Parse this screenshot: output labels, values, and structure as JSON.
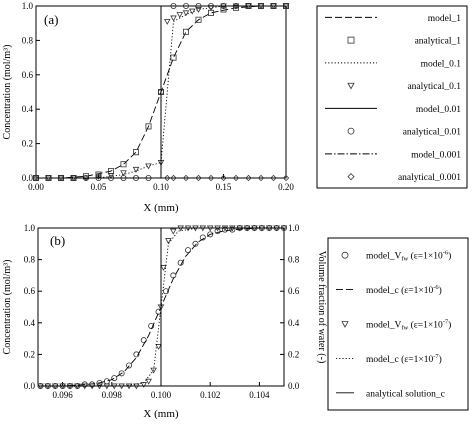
{
  "chart_data": [
    {
      "panel_label": "(a)",
      "type": "line",
      "xlabel": "X (mm)",
      "ylabel": "Concentration (mol/m³)",
      "xlim": [
        0.0,
        0.2
      ],
      "ylim": [
        0.0,
        1.0
      ],
      "xticks": [
        "0.00",
        "0.05",
        "0.10",
        "0.15",
        "0.20"
      ],
      "yticks": [
        "0.0",
        "0.2",
        "0.4",
        "0.6",
        "0.8",
        "1.0"
      ],
      "legend_position": "right",
      "series": [
        {
          "name": "model_1",
          "kind": "line",
          "style": "long-dash",
          "x": [
            0.0,
            0.02,
            0.04,
            0.06,
            0.07,
            0.08,
            0.09,
            0.1,
            0.11,
            0.12,
            0.13,
            0.14,
            0.16,
            0.18,
            0.2
          ],
          "y": [
            0.0,
            0.0,
            0.01,
            0.04,
            0.08,
            0.15,
            0.3,
            0.5,
            0.7,
            0.85,
            0.92,
            0.96,
            0.99,
            1.0,
            1.0
          ]
        },
        {
          "name": "analytical_1",
          "kind": "marker",
          "marker": "square",
          "x": [
            0.0,
            0.01,
            0.02,
            0.03,
            0.04,
            0.05,
            0.06,
            0.07,
            0.08,
            0.09,
            0.1,
            0.11,
            0.12,
            0.13,
            0.14,
            0.15,
            0.16,
            0.17,
            0.18,
            0.19,
            0.2
          ],
          "y": [
            0.0,
            0.0,
            0.0,
            0.0,
            0.01,
            0.02,
            0.04,
            0.08,
            0.15,
            0.3,
            0.5,
            0.7,
            0.85,
            0.92,
            0.96,
            0.98,
            0.99,
            1.0,
            1.0,
            1.0,
            1.0
          ]
        },
        {
          "name": "model_0.1",
          "kind": "line",
          "style": "dotted",
          "x": [
            0.0,
            0.05,
            0.07,
            0.08,
            0.09,
            0.1,
            0.11,
            0.12,
            0.13,
            0.15,
            0.2
          ],
          "y": [
            0.0,
            0.0,
            0.02,
            0.04,
            0.07,
            0.09,
            0.91,
            0.95,
            0.98,
            1.0,
            1.0
          ]
        },
        {
          "name": "analytical_0.1",
          "kind": "marker",
          "marker": "triangle-down",
          "x": [
            0.0,
            0.01,
            0.02,
            0.03,
            0.04,
            0.05,
            0.06,
            0.07,
            0.08,
            0.09,
            0.1,
            0.105,
            0.11,
            0.115,
            0.12,
            0.125,
            0.13,
            0.14,
            0.15,
            0.16,
            0.17,
            0.18,
            0.19,
            0.2
          ],
          "y": [
            0.0,
            0.0,
            0.0,
            0.0,
            0.0,
            0.01,
            0.015,
            0.03,
            0.05,
            0.07,
            0.09,
            0.91,
            0.93,
            0.95,
            0.96,
            0.97,
            0.98,
            0.99,
            1.0,
            1.0,
            1.0,
            1.0,
            1.0,
            1.0
          ]
        },
        {
          "name": "model_0.01",
          "kind": "line",
          "style": "solid",
          "x": [
            0.0,
            0.1,
            0.1,
            0.2
          ],
          "y": [
            0.0,
            0.0,
            1.0,
            1.0
          ]
        },
        {
          "name": "analytical_0.01",
          "kind": "marker",
          "marker": "circle",
          "x": [
            0.0,
            0.01,
            0.02,
            0.03,
            0.04,
            0.05,
            0.06,
            0.07,
            0.08,
            0.09,
            0.1,
            0.11,
            0.12,
            0.13,
            0.14,
            0.15,
            0.16,
            0.17,
            0.18,
            0.19,
            0.2
          ],
          "y": [
            0.0,
            0.0,
            0.0,
            0.0,
            0.0,
            0.0,
            0.0,
            0.0,
            0.0,
            0.0,
            0.5,
            1.0,
            1.0,
            1.0,
            1.0,
            1.0,
            1.0,
            1.0,
            1.0,
            1.0,
            1.0
          ]
        },
        {
          "name": "model_0.001",
          "kind": "line",
          "style": "dash-dot",
          "x": [
            0.0,
            0.1,
            0.1,
            0.2
          ],
          "y": [
            0.0,
            0.0,
            1.0,
            1.0
          ]
        },
        {
          "name": "analytical_0.001",
          "kind": "marker",
          "marker": "diamond",
          "x": [
            0.105,
            0.11,
            0.12,
            0.13,
            0.14,
            0.15,
            0.16,
            0.17,
            0.18,
            0.19,
            0.2
          ],
          "y": [
            0.0,
            0.0,
            0.0,
            0.0,
            0.0,
            0.0,
            0.0,
            0.0,
            0.0,
            0.0,
            0.0
          ]
        }
      ]
    },
    {
      "panel_label": "(b)",
      "type": "line",
      "xlabel": "X (mm)",
      "ylabel": "Concentration (mol/m³)",
      "ylabel_right": "Volume fraction of water (-)",
      "xlim": [
        0.095,
        0.105
      ],
      "ylim": [
        0.0,
        1.0
      ],
      "xticks": [
        "0.096",
        "0.098",
        "0.100",
        "0.102",
        "0.104"
      ],
      "yticks": [
        "0.0",
        "0.2",
        "0.4",
        "0.6",
        "0.8",
        "1.0"
      ],
      "legend_position": "right",
      "series": [
        {
          "name": "model_V",
          "name_sub": "fw",
          "name_param": "(ε=1×10",
          "name_exp": "-6",
          "name_tail": ")",
          "kind": "marker",
          "marker": "circle",
          "x": [
            0.0951,
            0.0954,
            0.0957,
            0.096,
            0.0963,
            0.0966,
            0.0969,
            0.0972,
            0.0975,
            0.0978,
            0.0981,
            0.0984,
            0.0987,
            0.099,
            0.0993,
            0.0996,
            0.0999,
            0.1002,
            0.1005,
            0.1008,
            0.1011,
            0.1014,
            0.1017,
            0.102,
            0.1023,
            0.1026,
            0.1029,
            0.1032,
            0.1035,
            0.1038,
            0.1041,
            0.1044,
            0.1047,
            0.105
          ],
          "y": [
            0.0,
            0.0,
            0.0,
            0.0,
            0.0,
            0.0,
            0.01,
            0.01,
            0.02,
            0.03,
            0.05,
            0.08,
            0.13,
            0.2,
            0.29,
            0.38,
            0.47,
            0.6,
            0.7,
            0.78,
            0.86,
            0.9,
            0.94,
            0.96,
            0.98,
            0.99,
            0.99,
            1.0,
            1.0,
            1.0,
            1.0,
            1.0,
            1.0,
            1.0
          ]
        },
        {
          "name": "model_c",
          "name_param": "(ε=1×10",
          "name_exp": "-6",
          "name_tail": ")",
          "kind": "line",
          "style": "long-dash",
          "x": [
            0.095,
            0.096,
            0.097,
            0.0975,
            0.098,
            0.0985,
            0.099,
            0.0995,
            0.1,
            0.1005,
            0.101,
            0.1015,
            0.102,
            0.1025,
            0.103,
            0.104,
            0.105
          ],
          "y": [
            0.0,
            0.0,
            0.01,
            0.02,
            0.04,
            0.09,
            0.18,
            0.32,
            0.5,
            0.68,
            0.82,
            0.91,
            0.96,
            0.98,
            0.99,
            1.0,
            1.0
          ]
        },
        {
          "name": "model_V",
          "name_sub": "fw",
          "name_param": "(ε=1×10",
          "name_exp": "-7",
          "name_tail": ")",
          "kind": "marker",
          "marker": "triangle-down",
          "x": [
            0.0951,
            0.0954,
            0.0957,
            0.096,
            0.0963,
            0.0966,
            0.0969,
            0.0972,
            0.0975,
            0.0978,
            0.0981,
            0.0984,
            0.0987,
            0.099,
            0.0993,
            0.0995,
            0.0997,
            0.0999,
            0.1,
            0.1001,
            0.1003,
            0.1005,
            0.1008,
            0.1011,
            0.1014,
            0.1017,
            0.102,
            0.1023,
            0.1026,
            0.1029,
            0.1032,
            0.1035,
            0.1038,
            0.1041,
            0.1044,
            0.1047,
            0.105
          ],
          "y": [
            0.0,
            0.0,
            0.0,
            0.0,
            0.0,
            0.0,
            0.0,
            0.0,
            0.0,
            0.0,
            0.0,
            0.0,
            0.0,
            0.0,
            0.01,
            0.03,
            0.1,
            0.25,
            0.5,
            0.75,
            0.92,
            0.98,
            1.0,
            1.0,
            1.0,
            1.0,
            1.0,
            1.0,
            1.0,
            1.0,
            1.0,
            1.0,
            1.0,
            1.0,
            1.0,
            1.0,
            1.0
          ]
        },
        {
          "name": "model_c",
          "name_param": "(ε=1×10",
          "name_exp": "-7",
          "name_tail": ")",
          "kind": "line",
          "style": "dotted",
          "x": [
            0.095,
            0.0985,
            0.0993,
            0.0997,
            0.1,
            0.1003,
            0.1007,
            0.1015,
            0.105
          ],
          "y": [
            0.0,
            0.0,
            0.02,
            0.1,
            0.5,
            0.9,
            0.98,
            1.0,
            1.0
          ]
        },
        {
          "name": "analytical solution_c",
          "kind": "line",
          "style": "solid",
          "x": [
            0.095,
            0.1,
            0.1,
            0.105
          ],
          "y": [
            0.0,
            0.0,
            1.0,
            1.0
          ]
        }
      ]
    }
  ]
}
